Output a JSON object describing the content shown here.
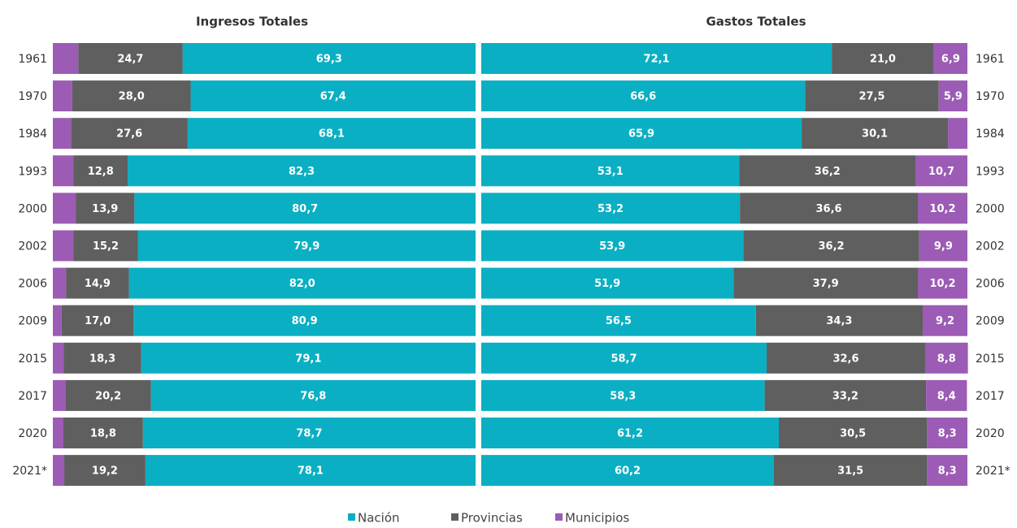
{
  "chart_data": [
    {
      "type": "bar",
      "orientation": "horizontal",
      "stacked": true,
      "title": "Ingresos Totales",
      "categories": [
        "1961",
        "1970",
        "1984",
        "1993",
        "2000",
        "2002",
        "2006",
        "2009",
        "2015",
        "2017",
        "2020",
        "2021*"
      ],
      "xlim": [
        100,
        0
      ],
      "series": [
        {
          "name": "Nación",
          "color": "#0aafc3",
          "values": [
            69.3,
            67.4,
            68.1,
            82.3,
            80.7,
            79.9,
            82.0,
            80.9,
            79.1,
            76.8,
            78.7,
            78.1
          ],
          "value_labels": [
            "69,3",
            "67,4",
            "68,1",
            "82,3",
            "80,7",
            "79,9",
            "82,0",
            "80,9",
            "79,1",
            "76,8",
            "78,7",
            "78,1"
          ]
        },
        {
          "name": "Provincias",
          "color": "#5f5f5f",
          "values": [
            24.7,
            28.0,
            27.6,
            12.8,
            13.9,
            15.2,
            14.9,
            17.0,
            18.3,
            20.2,
            18.8,
            19.2
          ],
          "value_labels": [
            "24,7",
            "28,0",
            "27,6",
            "12,8",
            "13,9",
            "15,2",
            "14,9",
            "17,0",
            "18,3",
            "20,2",
            "18,8",
            "19,2"
          ]
        },
        {
          "name": "Municipios",
          "color": "#9c5bb5",
          "values": [
            6.0,
            4.6,
            4.3,
            4.9,
            5.4,
            4.9,
            3.1,
            2.1,
            2.6,
            3.0,
            2.5,
            2.7
          ],
          "value_labels": [
            null,
            null,
            null,
            null,
            null,
            null,
            null,
            null,
            null,
            null,
            null,
            null
          ]
        }
      ]
    },
    {
      "type": "bar",
      "orientation": "horizontal",
      "stacked": true,
      "title": "Gastos Totales",
      "categories": [
        "1961",
        "1970",
        "1984",
        "1993",
        "2000",
        "2002",
        "2006",
        "2009",
        "2015",
        "2017",
        "2020",
        "2021*"
      ],
      "xlim": [
        0,
        100
      ],
      "series": [
        {
          "name": "Nación",
          "color": "#0aafc3",
          "values": [
            72.1,
            66.6,
            65.9,
            53.1,
            53.2,
            53.9,
            51.9,
            56.5,
            58.7,
            58.3,
            61.2,
            60.2
          ],
          "value_labels": [
            "72,1",
            "66,6",
            "65,9",
            "53,1",
            "53,2",
            "53,9",
            "51,9",
            "56,5",
            "58,7",
            "58,3",
            "61,2",
            "60,2"
          ]
        },
        {
          "name": "Provincias",
          "color": "#5f5f5f",
          "values": [
            21.0,
            27.5,
            30.1,
            36.2,
            36.6,
            36.2,
            37.9,
            34.3,
            32.6,
            33.2,
            30.5,
            31.5
          ],
          "value_labels": [
            "21,0",
            "27,5",
            "30,1",
            "36,2",
            "36,6",
            "36,2",
            "37,9",
            "34,3",
            "32,6",
            "33,2",
            "30,5",
            "31,5"
          ]
        },
        {
          "name": "Municipios",
          "color": "#9c5bb5",
          "values": [
            6.9,
            5.9,
            4.0,
            10.7,
            10.2,
            9.9,
            10.2,
            9.2,
            8.8,
            8.4,
            8.3,
            8.3
          ],
          "value_labels": [
            "6,9",
            "5,9",
            null,
            "10,7",
            "10,2",
            "9,9",
            "10,2",
            "9,2",
            "8,8",
            "8,4",
            "8,3",
            "8,3"
          ]
        }
      ]
    }
  ]
}
